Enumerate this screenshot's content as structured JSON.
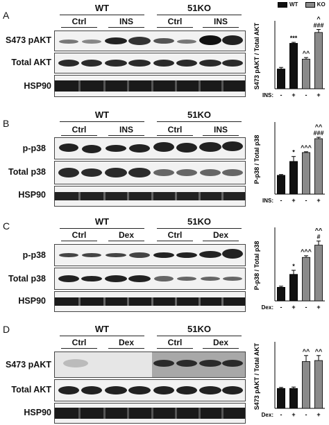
{
  "legend": {
    "wt_label": "WT",
    "ko_label": "KO",
    "wt_color": "#111111",
    "ko_color": "#8a8a8a"
  },
  "panels": [
    {
      "id": "A",
      "letter": "A",
      "groups": [
        "WT",
        "51KO"
      ],
      "conditions": [
        "Ctrl",
        "INS",
        "Ctrl",
        "INS"
      ],
      "blot_rows": [
        "S473 pAKT",
        "Total AKT",
        "HSP90"
      ],
      "chart_data": {
        "type": "bar",
        "ylabel": "S473 pAKT / Total AKT",
        "xlabel": "INS:",
        "categories": [
          "-",
          "+",
          "-",
          "+"
        ],
        "values": [
          1.0,
          2.3,
          1.5,
          2.85
        ],
        "errors": [
          0.08,
          0.05,
          0.08,
          0.15
        ],
        "colors": [
          "#111111",
          "#111111",
          "#8a8a8a",
          "#8a8a8a"
        ],
        "annotations": [
          "",
          "***",
          "^^",
          "^\n###"
        ],
        "ylim": [
          0,
          3.3
        ],
        "legend": "top"
      }
    },
    {
      "id": "B",
      "letter": "B",
      "groups": [
        "WT",
        "51KO"
      ],
      "conditions": [
        "Ctrl",
        "INS",
        "Ctrl",
        "INS"
      ],
      "blot_rows": [
        "p-p38",
        "Total p38",
        "HSP90"
      ],
      "chart_data": {
        "type": "bar",
        "ylabel": "P-p38 / Total p38",
        "xlabel": "INS:",
        "categories": [
          "-",
          "+",
          "-",
          "+"
        ],
        "values": [
          0.95,
          1.65,
          2.1,
          2.8
        ],
        "errors": [
          0.04,
          0.25,
          0.04,
          0.07
        ],
        "colors": [
          "#111111",
          "#111111",
          "#8a8a8a",
          "#8a8a8a"
        ],
        "annotations": [
          "",
          "*",
          "^^^",
          "^^\n###"
        ],
        "ylim": [
          0,
          3.5
        ],
        "legend": "none"
      }
    },
    {
      "id": "C",
      "letter": "C",
      "groups": [
        "WT",
        "51KO"
      ],
      "conditions": [
        "Ctrl",
        "Dex",
        "Ctrl",
        "Dex"
      ],
      "blot_rows": [
        "p-p38",
        "Total p38",
        "HSP90"
      ],
      "chart_data": {
        "type": "bar",
        "ylabel": "P-p38 / Total p38",
        "xlabel": "Dex:",
        "categories": [
          "-",
          "+",
          "-",
          "+"
        ],
        "values": [
          1.0,
          1.95,
          3.2,
          4.1
        ],
        "errors": [
          0.08,
          0.3,
          0.12,
          0.3
        ],
        "colors": [
          "#111111",
          "#111111",
          "#8a8a8a",
          "#8a8a8a"
        ],
        "annotations": [
          "",
          "*",
          "^^^",
          "^^\n#"
        ],
        "ylim": [
          0,
          5.2
        ],
        "legend": "none"
      }
    },
    {
      "id": "D",
      "letter": "D",
      "groups": [
        "WT",
        "51KO"
      ],
      "conditions": [
        "Ctrl",
        "Dex",
        "Ctrl",
        "Dex"
      ],
      "blot_rows": [
        "S473 pAKT",
        "Total AKT",
        "HSP90"
      ],
      "chart_data": {
        "type": "bar",
        "ylabel": "S473 pAKT / Total AKT",
        "xlabel": "Dex:",
        "categories": [
          "-",
          "+",
          "-",
          "+"
        ],
        "values": [
          1.0,
          1.0,
          2.35,
          2.4
        ],
        "errors": [
          0.05,
          0.07,
          0.3,
          0.25
        ],
        "colors": [
          "#111111",
          "#111111",
          "#8a8a8a",
          "#8a8a8a"
        ],
        "annotations": [
          "",
          "",
          "^^",
          "^^"
        ],
        "ylim": [
          0,
          3.2
        ],
        "legend": "none"
      }
    }
  ]
}
